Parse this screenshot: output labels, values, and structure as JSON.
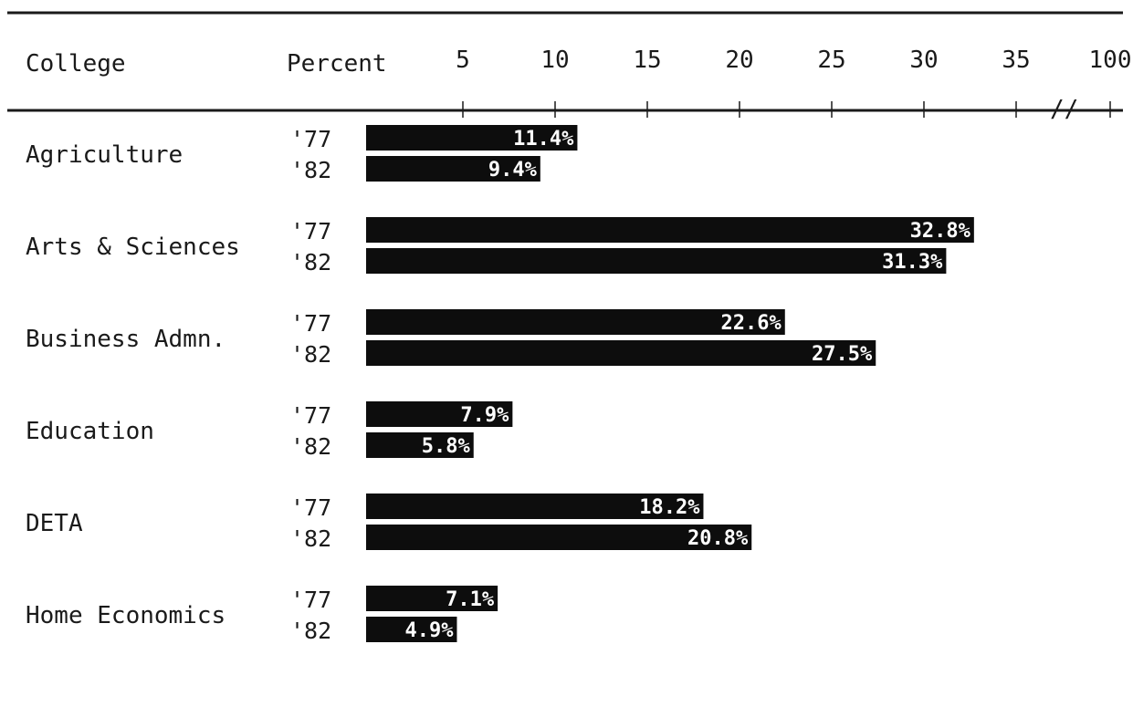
{
  "chart_data": {
    "type": "bar",
    "orientation": "horizontal",
    "header": {
      "category_label": "College",
      "value_label": "Percent"
    },
    "tick_labels": [
      "5",
      "10",
      "15",
      "20",
      "25",
      "30",
      "35",
      "100"
    ],
    "axis_break": "//",
    "year_labels": [
      "'77",
      "'82"
    ],
    "xlim": [
      0,
      35
    ],
    "categories": [
      "Agriculture",
      "Arts & Sciences",
      "Business Admn.",
      "Education",
      "DETA",
      "Home Economics"
    ],
    "series": [
      {
        "name": "'77",
        "values": [
          11.4,
          32.8,
          22.6,
          7.9,
          18.2,
          7.1
        ],
        "labels": [
          "11.4%",
          "32.8%",
          "22.6%",
          "7.9%",
          "18.2%",
          "7.1%"
        ]
      },
      {
        "name": "'82",
        "values": [
          9.4,
          31.3,
          27.5,
          5.8,
          20.8,
          4.9
        ],
        "labels": [
          "9.4%",
          "31.3%",
          "27.5%",
          "5.8%",
          "20.8%",
          "4.9%"
        ]
      }
    ],
    "colors": {
      "bar": "#0d0d0d",
      "label": "#ffffff",
      "text": "#1a1a1a"
    }
  }
}
